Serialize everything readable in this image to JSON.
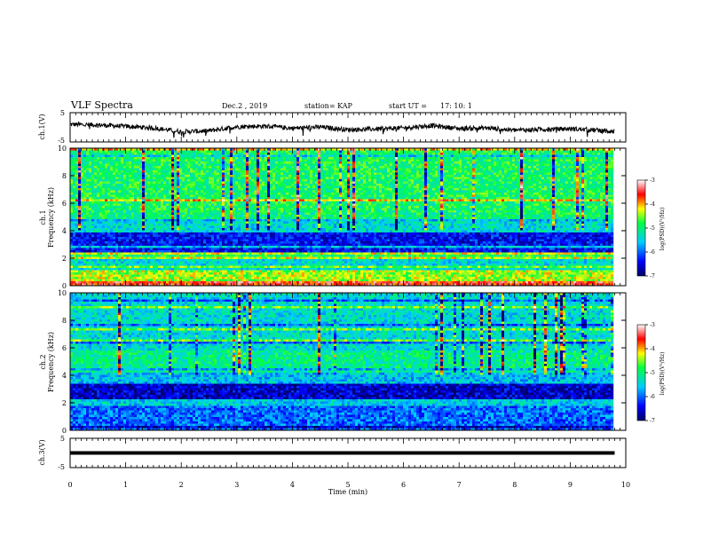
{
  "header": {
    "title": "VLF Spectra",
    "date": "Dec.2 , 2019",
    "station": "station= KAP",
    "start_label": "start  UT =",
    "start_time": "17: 10: 1"
  },
  "chart_data": [
    {
      "type": "line",
      "ylabel": "ch.1(V)",
      "ylim": [
        -5,
        5
      ],
      "y_ticks": [
        "5",
        "-5"
      ],
      "x": [
        0,
        0.5,
        1,
        1.5,
        2,
        2.5,
        3,
        3.5,
        4,
        4.5,
        5,
        5.5,
        6,
        6.5,
        7,
        7.5,
        8,
        8.5,
        9,
        9.5,
        9.8
      ],
      "y": [
        1,
        0.8,
        0.3,
        -0.2,
        -1.5,
        -1.2,
        0.2,
        0.4,
        -0.3,
        0.1,
        -0.8,
        -0.6,
        -0.2,
        0.6,
        -0.4,
        -0.2,
        -1,
        -0.7,
        -0.5,
        -1,
        -1.5
      ]
    },
    {
      "type": "heatmap",
      "ylabel": "ch.1\nFrequency (kHz)",
      "ylim": [
        0,
        10
      ],
      "y_ticks": [
        "0",
        "2",
        "4",
        "6",
        "8",
        "10"
      ],
      "xlim": [
        0,
        10
      ],
      "colorbar": {
        "label": "log(PSD)(V²/Hz)",
        "range": [
          -7,
          -3
        ],
        "ticks": [
          "-3",
          "-4",
          "-5",
          "-6",
          "-7"
        ]
      },
      "bands": [
        {
          "f": [
            0,
            0.4
          ],
          "level": -3.6
        },
        {
          "f": [
            0.4,
            1.2
          ],
          "level": -4.4
        },
        {
          "f": [
            1.2,
            2.0
          ],
          "level": -5.4
        },
        {
          "f": [
            2.0,
            2.5
          ],
          "level": -4.3
        },
        {
          "f": [
            2.5,
            3.8
          ],
          "level": -6.4
        },
        {
          "f": [
            3.8,
            4.6
          ],
          "level": -5.4
        },
        {
          "f": [
            4.6,
            5.3
          ],
          "level": -5.0
        },
        {
          "f": [
            5.3,
            10
          ],
          "level": -4.9
        }
      ]
    },
    {
      "type": "heatmap",
      "ylabel": "ch.2\nFrequency (kHz)",
      "ylim": [
        0,
        10
      ],
      "y_ticks": [
        "0",
        "2",
        "4",
        "6",
        "8",
        "10"
      ],
      "xlim": [
        0,
        10
      ],
      "colorbar": {
        "label": "log(PSD)(V²/Hz)",
        "range": [
          -7,
          -3
        ],
        "ticks": [
          "-3",
          "-4",
          "-5",
          "-6",
          "-7"
        ]
      },
      "bands": [
        {
          "f": [
            0,
            1.8
          ],
          "level": -6.0
        },
        {
          "f": [
            1.8,
            2.2
          ],
          "level": -5.5
        },
        {
          "f": [
            2.2,
            3.4
          ],
          "level": -6.6
        },
        {
          "f": [
            3.4,
            4.2
          ],
          "level": -5.6
        },
        {
          "f": [
            4.2,
            5.8
          ],
          "level": -5.1
        },
        {
          "f": [
            5.8,
            10
          ],
          "level": -5.4
        }
      ]
    },
    {
      "type": "line",
      "ylabel": "ch.3(V)",
      "ylim": [
        -5,
        5
      ],
      "y_ticks": [
        "5",
        "-5"
      ],
      "x": [
        0,
        9.8
      ],
      "y": [
        0,
        0
      ],
      "xlabel": "Time  (min)",
      "xlim": [
        0,
        10
      ],
      "x_ticks": [
        "0",
        "1",
        "2",
        "3",
        "4",
        "5",
        "6",
        "7",
        "8",
        "9",
        "10"
      ]
    }
  ]
}
